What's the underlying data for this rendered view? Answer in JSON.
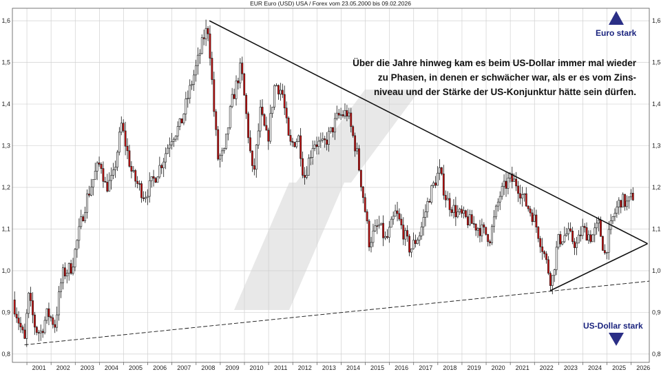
{
  "chart_data": {
    "type": "candlestick",
    "title": "EUR Euro (USD) USA / Forex vom 23.05.2000 bis 09.02.2026",
    "x_labels": [
      "2001",
      "2002",
      "2003",
      "2004",
      "2005",
      "2006",
      "2007",
      "2008",
      "2009",
      "2010",
      "2011",
      "2012",
      "2013",
      "2014",
      "2015",
      "2016",
      "2017",
      "2018",
      "2019",
      "2020",
      "2021",
      "2022",
      "2023",
      "2024",
      "2025",
      "2026"
    ],
    "y_ticks": [
      "0,8",
      "0,9",
      "1,0",
      "1,1",
      "1,2",
      "1,3",
      "1,4",
      "1,5",
      "1,6"
    ],
    "ylim": [
      0.78,
      1.63
    ],
    "xlim": [
      2000.4,
      2026.75
    ],
    "grid": true,
    "close_path": [
      [
        2000.45,
        0.93
      ],
      [
        2000.8,
        0.86
      ],
      [
        2000.95,
        0.83
      ],
      [
        2001.1,
        0.94
      ],
      [
        2001.4,
        0.86
      ],
      [
        2001.6,
        0.85
      ],
      [
        2001.9,
        0.9
      ],
      [
        2002.2,
        0.87
      ],
      [
        2002.5,
        0.99
      ],
      [
        2002.9,
        1.01
      ],
      [
        2003.3,
        1.12
      ],
      [
        2003.5,
        1.17
      ],
      [
        2003.9,
        1.24
      ],
      [
        2004.1,
        1.26
      ],
      [
        2004.3,
        1.2
      ],
      [
        2004.6,
        1.22
      ],
      [
        2004.95,
        1.35
      ],
      [
        2005.4,
        1.23
      ],
      [
        2005.9,
        1.18
      ],
      [
        2006.3,
        1.22
      ],
      [
        2006.7,
        1.27
      ],
      [
        2007.0,
        1.32
      ],
      [
        2007.4,
        1.35
      ],
      [
        2007.9,
        1.46
      ],
      [
        2008.1,
        1.5
      ],
      [
        2008.4,
        1.57
      ],
      [
        2008.55,
        1.58
      ],
      [
        2008.8,
        1.37
      ],
      [
        2008.95,
        1.27
      ],
      [
        2009.2,
        1.28
      ],
      [
        2009.5,
        1.4
      ],
      [
        2009.9,
        1.49
      ],
      [
        2010.4,
        1.22
      ],
      [
        2010.7,
        1.38
      ],
      [
        2011.0,
        1.31
      ],
      [
        2011.3,
        1.45
      ],
      [
        2011.6,
        1.43
      ],
      [
        2011.9,
        1.3
      ],
      [
        2012.3,
        1.32
      ],
      [
        2012.5,
        1.22
      ],
      [
        2012.9,
        1.31
      ],
      [
        2013.3,
        1.3
      ],
      [
        2013.6,
        1.33
      ],
      [
        2013.9,
        1.37
      ],
      [
        2014.3,
        1.38
      ],
      [
        2014.7,
        1.28
      ],
      [
        2015.0,
        1.16
      ],
      [
        2015.2,
        1.07
      ],
      [
        2015.6,
        1.11
      ],
      [
        2015.9,
        1.07
      ],
      [
        2016.3,
        1.14
      ],
      [
        2016.9,
        1.05
      ],
      [
        2017.3,
        1.09
      ],
      [
        2017.7,
        1.18
      ],
      [
        2018.1,
        1.24
      ],
      [
        2018.4,
        1.17
      ],
      [
        2018.8,
        1.14
      ],
      [
        2019.3,
        1.12
      ],
      [
        2019.8,
        1.1
      ],
      [
        2020.2,
        1.08
      ],
      [
        2020.6,
        1.18
      ],
      [
        2021.0,
        1.22
      ],
      [
        2021.3,
        1.21
      ],
      [
        2021.7,
        1.16
      ],
      [
        2022.0,
        1.13
      ],
      [
        2022.4,
        1.05
      ],
      [
        2022.75,
        0.97
      ],
      [
        2023.0,
        1.07
      ],
      [
        2023.4,
        1.09
      ],
      [
        2023.8,
        1.06
      ],
      [
        2024.0,
        1.1
      ],
      [
        2024.4,
        1.08
      ],
      [
        2024.7,
        1.11
      ],
      [
        2024.95,
        1.04
      ],
      [
        2025.3,
        1.13
      ],
      [
        2025.6,
        1.17
      ],
      [
        2025.9,
        1.16
      ],
      [
        2026.1,
        1.18
      ]
    ],
    "trendlines": [
      {
        "style": "solid",
        "points": [
          [
            2008.55,
            1.6
          ],
          [
            2026.68,
            1.065
          ]
        ]
      },
      {
        "style": "solid",
        "points": [
          [
            2022.65,
            0.952
          ],
          [
            2026.68,
            1.065
          ]
        ]
      },
      {
        "style": "dashed",
        "points": [
          [
            2000.9,
            0.822
          ],
          [
            2026.75,
            0.975
          ]
        ]
      }
    ],
    "colors": {
      "up": "#ffffff",
      "down": "#cc1010",
      "line": "#111111",
      "marker": "#2b2f86",
      "watermark": "#e8e8e8"
    }
  },
  "annotation": {
    "lines": [
      "Über die Jahre hinweg kam es beim US-Dollar immer mal wieder",
      "zu Phasen, in denen er schwächer war, als er es vom Zins-",
      "niveau und der Stärke der US-Konjunktur hätte sein dürfen."
    ]
  },
  "markers": {
    "top": {
      "label": "Euro stark",
      "icon": "triangle-up-icon"
    },
    "bottom": {
      "label": "US-Dollar stark",
      "icon": "triangle-down-icon"
    }
  }
}
